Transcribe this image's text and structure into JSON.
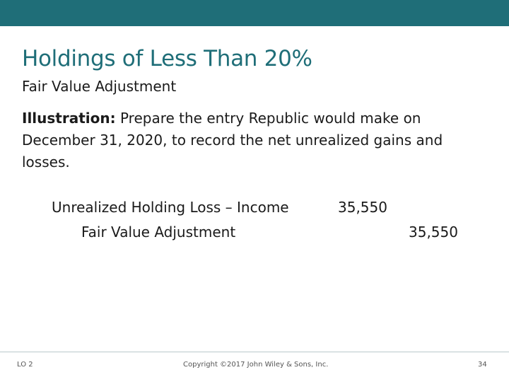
{
  "slide": {
    "title": "Holdings of Less Than 20%",
    "subtitle": "Fair Value Adjustment",
    "illustration": {
      "lead": "Illustration:",
      "text": " Prepare the entry Republic would make on December 31, 2020, to record the net unrealized gains and losses."
    },
    "journal_entry": {
      "debit_account": "Unrealized Holding Loss – Income",
      "debit_amount": "35,550",
      "credit_account": "Fair Value Adjustment",
      "credit_amount": "35,550"
    }
  },
  "footer": {
    "learning_objective": "LO 2",
    "copyright": "Copyright ©2017 John Wiley & Sons, Inc.",
    "page_number": "34"
  },
  "colors": {
    "accent": "#1f6e78",
    "text": "#1a1a1a"
  }
}
